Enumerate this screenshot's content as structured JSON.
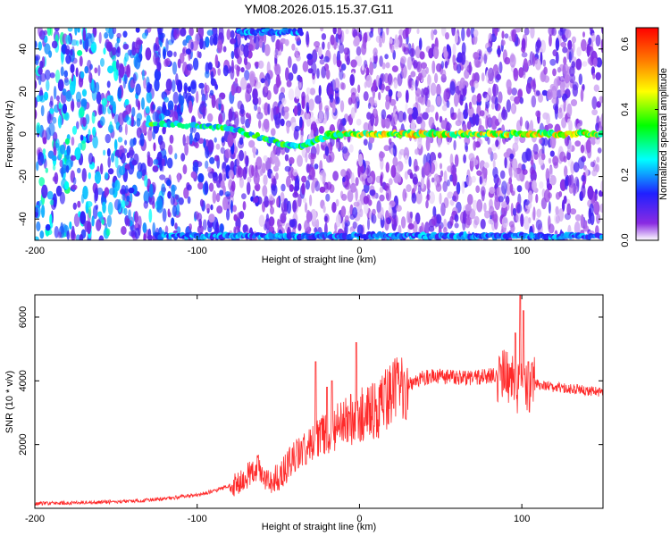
{
  "title": "YM08.2026.015.15.37.G11",
  "chart_data": [
    {
      "type": "heatmap",
      "xlabel": "Height of straight line (km)",
      "ylabel": "Frequency (Hz)",
      "xlim": [
        -200,
        150
      ],
      "ylim": [
        -50,
        50
      ],
      "xticks": [
        "-200",
        "-100",
        "0",
        "100"
      ],
      "yticks": [
        "-40",
        "-20",
        "0",
        "20",
        "40"
      ],
      "colorbar": {
        "label": "Normalized spectral amplitude",
        "range": [
          0,
          0.65
        ],
        "ticks": [
          "0.0",
          "0.2",
          "0.4",
          "0.6"
        ],
        "colors": [
          "#ffffff",
          "#8a2be2",
          "#2020ff",
          "#00ffff",
          "#00ff00",
          "#ffff00",
          "#ff8000",
          "#ff0000"
        ]
      },
      "features": [
        {
          "name": "0 Hz spectral line",
          "x_range": [
            -20,
            150
          ],
          "frequency": 0,
          "amplitude": 0.5
        },
        {
          "name": "descending trace",
          "points": [
            [
              -130,
              5
            ],
            [
              -100,
              4
            ],
            [
              -80,
              3
            ],
            [
              -60,
              -2
            ],
            [
              -45,
              -5
            ],
            [
              -35,
              -6
            ],
            [
              -25,
              -2
            ],
            [
              -10,
              0
            ]
          ]
        },
        {
          "name": "band edge high",
          "x_range": [
            -75,
            -35
          ],
          "frequency": 48
        },
        {
          "name": "band edge low",
          "x_range": [
            -125,
            150
          ],
          "frequency": -48
        }
      ]
    },
    {
      "type": "line",
      "xlabel": "Height of straight line (km)",
      "ylabel": "SNR (10 * v/v)",
      "xlim": [
        -200,
        150
      ],
      "ylim": [
        0,
        6700
      ],
      "xticks": [
        "-200",
        "-100",
        "0",
        "100"
      ],
      "yticks": [
        "2000",
        "4000",
        "6000"
      ],
      "color": "#ff2a2a",
      "series": [
        {
          "x": [
            -200,
            -180,
            -160,
            -140,
            -120,
            -110,
            -100,
            -90,
            -80,
            -75,
            -70,
            -65,
            -62,
            -58,
            -55,
            -50,
            -45,
            -40,
            -35,
            -30,
            -25,
            -20,
            -15,
            -10,
            -5,
            0,
            5,
            10,
            15,
            20,
            30,
            40,
            50,
            60,
            70,
            80,
            90,
            95,
            100,
            105,
            110,
            120,
            130,
            140,
            150
          ],
          "y": [
            150,
            170,
            190,
            230,
            300,
            360,
            420,
            540,
            700,
            820,
            980,
            1200,
            1300,
            1000,
            800,
            1000,
            1300,
            1600,
            1800,
            2000,
            2200,
            2400,
            2500,
            2700,
            2800,
            2900,
            2950,
            3100,
            3300,
            3600,
            3900,
            4100,
            4150,
            4100,
            4100,
            4150,
            4150,
            4000,
            3700,
            3800,
            3900,
            3800,
            3750,
            3700,
            3650
          ]
        }
      ],
      "spikes": [
        [
          -27,
          4600
        ],
        [
          -20,
          3800
        ],
        [
          -17,
          4000
        ],
        [
          -2,
          5200
        ],
        [
          96,
          5500
        ],
        [
          99,
          6700
        ],
        [
          101,
          6200
        ],
        [
          104,
          4600
        ]
      ]
    }
  ]
}
